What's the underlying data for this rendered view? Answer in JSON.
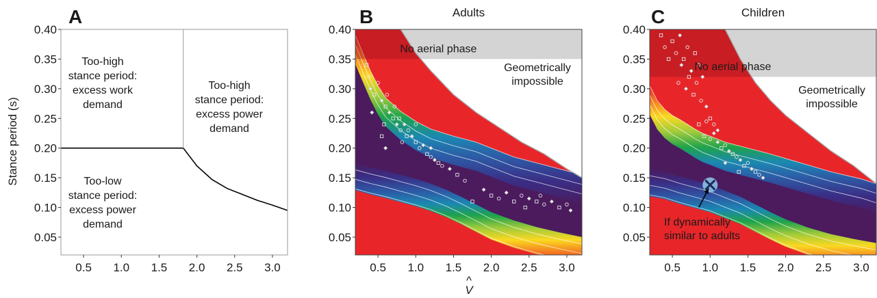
{
  "figure": {
    "ylabel": "Stance period (s)",
    "xlabel": "V",
    "xlabel_hat": "^"
  },
  "chart_data": [
    {
      "type": "line",
      "panel": "A",
      "title": "",
      "xlim": [
        0.2,
        3.2
      ],
      "ylim": [
        0.02,
        0.4
      ],
      "xticks": [
        0.5,
        1.0,
        1.5,
        2.0,
        2.5,
        3.0
      ],
      "xtick_labels": [
        "0.5",
        "1.0",
        "1.5",
        "2.0",
        "2.5",
        "3.0"
      ],
      "yticks": [
        0.05,
        0.1,
        0.15,
        0.2,
        0.25,
        0.3,
        0.35,
        0.4
      ],
      "ytick_labels": [
        "0.05",
        "0.10",
        "0.15",
        "0.20",
        "0.25",
        "0.30",
        "0.35",
        "0.40"
      ],
      "series": [
        {
          "x": [
            0.2,
            1.82,
            2.0,
            2.2,
            2.4,
            2.6,
            2.8,
            3.0,
            3.2
          ],
          "y": [
            0.2,
            0.2,
            0.17,
            0.147,
            0.132,
            0.122,
            0.112,
            0.104,
            0.095
          ]
        },
        {
          "x": [
            1.82,
            1.82
          ],
          "y": [
            0.2,
            0.4
          ]
        }
      ],
      "regions": [
        [
          "Too-high",
          "stance period:",
          "excess work",
          "demand"
        ],
        [
          "Too-high",
          "stance period:",
          "excess power",
          "demand"
        ],
        [
          "Too-low",
          "stance period:",
          "excess power",
          "demand"
        ]
      ]
    },
    {
      "type": "heatmap",
      "panel": "B",
      "title": "Adults",
      "xlim": [
        0.2,
        3.2
      ],
      "ylim": [
        0.02,
        0.4
      ],
      "xticks": [
        0.5,
        1.0,
        1.5,
        2.0,
        2.5,
        3.0
      ],
      "xtick_labels": [
        "0.5",
        "1.0",
        "1.5",
        "2.0",
        "2.5",
        "3.0"
      ],
      "yticks": [
        0.05,
        0.1,
        0.15,
        0.2,
        0.25,
        0.3,
        0.35,
        0.4
      ],
      "ytick_labels": [
        "0.05",
        "0.10",
        "0.15",
        "0.20",
        "0.25",
        "0.30",
        "0.35",
        "0.40"
      ],
      "aerial_label": "No aerial phase",
      "aerial_y": 0.35,
      "impossible_label": [
        "Geometrically",
        "impossible"
      ],
      "boundary": {
        "x": [
          0.8,
          1.0,
          1.2,
          1.5,
          1.8,
          2.1,
          2.4,
          2.7,
          3.0,
          3.2
        ],
        "y": [
          0.4,
          0.36,
          0.33,
          0.29,
          0.26,
          0.235,
          0.21,
          0.19,
          0.165,
          0.15
        ]
      },
      "band_upper": {
        "x": [
          0.2,
          0.3,
          0.4,
          0.5,
          0.6,
          0.8,
          1.0,
          1.2,
          1.5,
          1.8,
          2.0,
          2.3,
          2.6,
          2.9,
          3.2
        ],
        "y": [
          0.39,
          0.36,
          0.33,
          0.305,
          0.285,
          0.262,
          0.245,
          0.232,
          0.22,
          0.21,
          0.2,
          0.185,
          0.175,
          0.165,
          0.155
        ]
      },
      "band_lower": {
        "x": [
          0.2,
          0.4,
          0.6,
          0.8,
          1.0,
          1.2,
          1.4,
          1.6,
          1.8,
          2.0,
          2.3,
          2.6,
          2.9,
          3.2
        ],
        "y": [
          0.175,
          0.168,
          0.162,
          0.155,
          0.148,
          0.14,
          0.13,
          0.118,
          0.105,
          0.092,
          0.078,
          0.067,
          0.058,
          0.05
        ]
      },
      "points": [
        {
          "x": 0.35,
          "y": 0.34
        },
        {
          "x": 0.38,
          "y": 0.32
        },
        {
          "x": 0.4,
          "y": 0.3
        },
        {
          "x": 0.45,
          "y": 0.29
        },
        {
          "x": 0.5,
          "y": 0.31
        },
        {
          "x": 0.55,
          "y": 0.28
        },
        {
          "x": 0.6,
          "y": 0.27
        },
        {
          "x": 0.62,
          "y": 0.29
        },
        {
          "x": 0.65,
          "y": 0.26
        },
        {
          "x": 0.7,
          "y": 0.25
        },
        {
          "x": 0.72,
          "y": 0.27
        },
        {
          "x": 0.75,
          "y": 0.24
        },
        {
          "x": 0.78,
          "y": 0.25
        },
        {
          "x": 0.8,
          "y": 0.23
        },
        {
          "x": 0.85,
          "y": 0.24
        },
        {
          "x": 0.88,
          "y": 0.22
        },
        {
          "x": 0.9,
          "y": 0.23
        },
        {
          "x": 0.95,
          "y": 0.22
        },
        {
          "x": 1.0,
          "y": 0.21
        },
        {
          "x": 1.05,
          "y": 0.2
        },
        {
          "x": 1.1,
          "y": 0.205
        },
        {
          "x": 1.15,
          "y": 0.19
        },
        {
          "x": 1.2,
          "y": 0.185
        },
        {
          "x": 1.25,
          "y": 0.18
        },
        {
          "x": 1.3,
          "y": 0.175
        },
        {
          "x": 1.35,
          "y": 0.17
        },
        {
          "x": 1.45,
          "y": 0.165
        },
        {
          "x": 1.55,
          "y": 0.155
        },
        {
          "x": 1.65,
          "y": 0.145
        },
        {
          "x": 0.42,
          "y": 0.26
        },
        {
          "x": 0.58,
          "y": 0.24
        },
        {
          "x": 0.82,
          "y": 0.21
        },
        {
          "x": 0.6,
          "y": 0.2
        },
        {
          "x": 0.55,
          "y": 0.22
        },
        {
          "x": 1.0,
          "y": 0.24
        },
        {
          "x": 1.2,
          "y": 0.2
        },
        {
          "x": 2.0,
          "y": 0.12
        },
        {
          "x": 2.1,
          "y": 0.115
        },
        {
          "x": 2.2,
          "y": 0.125
        },
        {
          "x": 2.3,
          "y": 0.11
        },
        {
          "x": 2.4,
          "y": 0.12
        },
        {
          "x": 2.5,
          "y": 0.115
        },
        {
          "x": 2.6,
          "y": 0.11
        },
        {
          "x": 2.7,
          "y": 0.105
        },
        {
          "x": 2.8,
          "y": 0.11
        },
        {
          "x": 2.9,
          "y": 0.1
        },
        {
          "x": 3.0,
          "y": 0.105
        },
        {
          "x": 3.05,
          "y": 0.095
        },
        {
          "x": 2.45,
          "y": 0.1
        },
        {
          "x": 2.65,
          "y": 0.12
        },
        {
          "x": 1.9,
          "y": 0.13
        },
        {
          "x": 1.75,
          "y": 0.11
        }
      ]
    },
    {
      "type": "heatmap",
      "panel": "C",
      "title": "Children",
      "xlim": [
        0.2,
        3.2
      ],
      "ylim": [
        0.02,
        0.4
      ],
      "xticks": [
        0.5,
        1.0,
        1.5,
        2.0,
        2.5,
        3.0
      ],
      "xtick_labels": [
        "0.5",
        "1.0",
        "1.5",
        "2.0",
        "2.5",
        "3.0"
      ],
      "yticks": [
        0.05,
        0.1,
        0.15,
        0.2,
        0.25,
        0.3,
        0.35,
        0.4
      ],
      "ytick_labels": [
        "0.05",
        "0.10",
        "0.15",
        "0.20",
        "0.25",
        "0.30",
        "0.35",
        "0.40"
      ],
      "aerial_label": "No aerial phase",
      "aerial_y": 0.32,
      "impossible_label": [
        "Geometrically",
        "impossible"
      ],
      "boundary": {
        "x": [
          1.2,
          1.4,
          1.6,
          1.8,
          2.0,
          2.3,
          2.6,
          2.9,
          3.2
        ],
        "y": [
          0.4,
          0.35,
          0.31,
          0.28,
          0.255,
          0.225,
          0.195,
          0.17,
          0.14
        ]
      },
      "band_upper": {
        "x": [
          0.2,
          0.3,
          0.4,
          0.5,
          0.6,
          0.7,
          0.8,
          0.9,
          1.0,
          1.2,
          1.5,
          1.8,
          2.2,
          2.6,
          3.0,
          3.2
        ],
        "y": [
          0.305,
          0.28,
          0.265,
          0.255,
          0.248,
          0.24,
          0.232,
          0.225,
          0.22,
          0.21,
          0.2,
          0.19,
          0.175,
          0.16,
          0.148,
          0.14
        ]
      },
      "band_lower": {
        "x": [
          0.2,
          0.4,
          0.6,
          0.8,
          1.0,
          1.2,
          1.4,
          1.6,
          1.8,
          2.0,
          2.3,
          2.6,
          2.9,
          3.2
        ],
        "y": [
          0.165,
          0.16,
          0.152,
          0.145,
          0.138,
          0.128,
          0.118,
          0.105,
          0.092,
          0.08,
          0.066,
          0.055,
          0.047,
          0.04
        ]
      },
      "points": [
        {
          "x": 0.5,
          "y": 0.38
        },
        {
          "x": 0.55,
          "y": 0.36
        },
        {
          "x": 0.6,
          "y": 0.39
        },
        {
          "x": 0.65,
          "y": 0.35
        },
        {
          "x": 0.7,
          "y": 0.37
        },
        {
          "x": 0.75,
          "y": 0.33
        },
        {
          "x": 0.8,
          "y": 0.36
        },
        {
          "x": 0.85,
          "y": 0.34
        },
        {
          "x": 0.9,
          "y": 0.32
        },
        {
          "x": 0.45,
          "y": 0.35
        },
        {
          "x": 0.58,
          "y": 0.31
        },
        {
          "x": 0.68,
          "y": 0.3
        },
        {
          "x": 0.78,
          "y": 0.29
        },
        {
          "x": 0.88,
          "y": 0.28
        },
        {
          "x": 0.95,
          "y": 0.27
        },
        {
          "x": 1.0,
          "y": 0.25
        },
        {
          "x": 1.05,
          "y": 0.24
        },
        {
          "x": 1.1,
          "y": 0.23
        },
        {
          "x": 0.92,
          "y": 0.22
        },
        {
          "x": 1.0,
          "y": 0.215
        },
        {
          "x": 1.1,
          "y": 0.21
        },
        {
          "x": 1.15,
          "y": 0.2
        },
        {
          "x": 1.2,
          "y": 0.205
        },
        {
          "x": 1.25,
          "y": 0.195
        },
        {
          "x": 1.3,
          "y": 0.19
        },
        {
          "x": 1.35,
          "y": 0.185
        },
        {
          "x": 1.4,
          "y": 0.18
        },
        {
          "x": 1.45,
          "y": 0.17
        },
        {
          "x": 1.5,
          "y": 0.175
        },
        {
          "x": 1.55,
          "y": 0.165
        },
        {
          "x": 1.6,
          "y": 0.16
        },
        {
          "x": 1.65,
          "y": 0.155
        },
        {
          "x": 1.7,
          "y": 0.15
        },
        {
          "x": 0.85,
          "y": 0.24
        },
        {
          "x": 0.95,
          "y": 0.245
        },
        {
          "x": 1.05,
          "y": 0.225
        },
        {
          "x": 0.35,
          "y": 0.39
        },
        {
          "x": 0.4,
          "y": 0.37
        },
        {
          "x": 0.62,
          "y": 0.34
        },
        {
          "x": 0.72,
          "y": 0.32
        },
        {
          "x": 0.82,
          "y": 0.31
        },
        {
          "x": 1.2,
          "y": 0.175
        },
        {
          "x": 1.38,
          "y": 0.16
        }
      ],
      "marker": {
        "x": 1.0,
        "y": 0.138,
        "symbol": "X"
      },
      "annotation": {
        "lines": [
          "If dynamically",
          "similar to adults"
        ],
        "x": 0.55,
        "y": 0.075,
        "arrow_from": {
          "x": 0.85,
          "y": 0.1
        },
        "arrow_to": {
          "x": 0.98,
          "y": 0.132
        }
      }
    }
  ]
}
